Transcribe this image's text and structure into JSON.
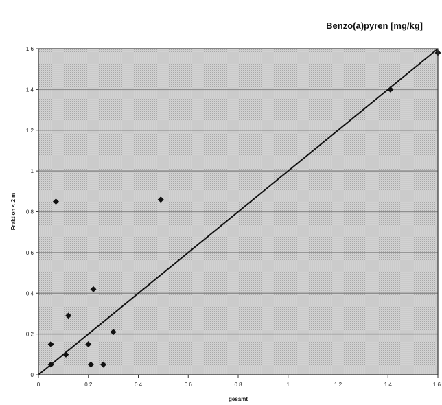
{
  "chart_data": {
    "type": "scatter",
    "title": "Benzo(a)pyren [mg/kg]",
    "xlabel": "gesamt",
    "ylabel": "Fraktion < 2 m",
    "xlim": [
      0,
      1.6
    ],
    "ylim": [
      0,
      1.6
    ],
    "x_ticks": [
      0,
      0.2,
      0.4,
      0.6,
      0.8,
      1,
      1.2,
      1.4,
      1.6
    ],
    "y_ticks": [
      0,
      0.2,
      0.4,
      0.6,
      0.8,
      1,
      1.2,
      1.4,
      1.6
    ],
    "x_tick_labels": [
      "0",
      "0.2",
      "0.4",
      "0.6",
      "0.8",
      "1",
      "1.2",
      "1.4",
      "1.6"
    ],
    "y_tick_labels": [
      "0",
      "0.2",
      "0.4",
      "0.6",
      "0.8",
      "1",
      "1.2",
      "1.4",
      "1.6"
    ],
    "grid": "horizontal",
    "line": {
      "x": [
        0,
        1.6
      ],
      "y": [
        0,
        1.6
      ]
    },
    "points": [
      {
        "x": 0.05,
        "y": 0.05
      },
      {
        "x": 0.05,
        "y": 0.15
      },
      {
        "x": 0.07,
        "y": 0.85
      },
      {
        "x": 0.11,
        "y": 0.1
      },
      {
        "x": 0.12,
        "y": 0.29
      },
      {
        "x": 0.2,
        "y": 0.15
      },
      {
        "x": 0.21,
        "y": 0.05
      },
      {
        "x": 0.22,
        "y": 0.42
      },
      {
        "x": 0.26,
        "y": 0.05
      },
      {
        "x": 0.3,
        "y": 0.21
      },
      {
        "x": 0.49,
        "y": 0.86
      },
      {
        "x": 1.41,
        "y": 1.4
      },
      {
        "x": 1.6,
        "y": 1.58
      }
    ],
    "colors": {
      "plot_background": "#c8c8c8",
      "gridline": "#8e8e8e",
      "marker": "#111111",
      "line": "#111111",
      "frame": "#333333"
    }
  }
}
